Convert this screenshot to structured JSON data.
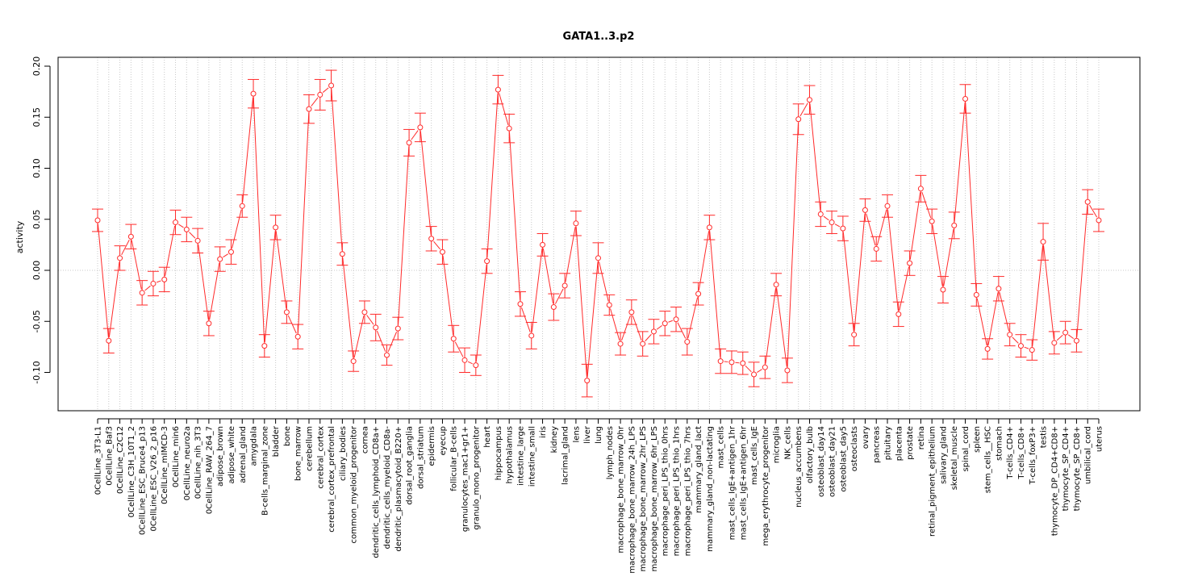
{
  "chart_data": {
    "type": "line",
    "title": "GATA1..3.p2",
    "xlabel": "",
    "ylabel": "activity",
    "ylim": [
      -0.135,
      0.21
    ],
    "yticks": [
      -0.1,
      -0.05,
      0.0,
      0.05,
      0.1,
      0.15,
      0.2
    ],
    "ytick_labels": [
      "-0.10",
      "-0.05",
      "0.00",
      "0.05",
      "0.10",
      "0.15",
      "0.20"
    ],
    "grid": "vertical dotted per category, dotted zero line",
    "error_bars": true,
    "series_color": "#ff2a2a",
    "grid_color": "#c8c8c8",
    "categories": [
      "0CellLine_3T3-L1",
      "0CellLine_Baf3",
      "0CellLine_C2C12",
      "0CellLine_C3H_10T1_2",
      "0CellLine_ESC_Bruce4_p13",
      "0CellLine_ESC_V26_2_p16",
      "0CellLine_mIMCD-3",
      "0CellLine_min6",
      "0CellLine_neuro2a",
      "0CellLine_nih_3T3",
      "0CellLine_RAW_264_7",
      "adipose_brown",
      "adipose_white",
      "adrenal_gland",
      "amygdala",
      "B-cells_marginal_zone",
      "bladder",
      "bone",
      "bone_marrow",
      "cerebellum",
      "cerebral_cortex",
      "cerebral_cortex_prefrontal",
      "ciliary_bodies",
      "common_myeloid_progenitor",
      "cornea",
      "dendritic_cells_lymphoid_CD8a+",
      "dendritic_cells_myeloid_CD8a-",
      "dendritic_plasmacytoid_B220+",
      "dorsal_root_ganglia",
      "dorsal_striatum",
      "epidermis",
      "eyecup",
      "follicular_B-cells",
      "granulocytes_mac1+gr1+",
      "granulo_mono_progenitor",
      "heart",
      "hippocampus",
      "hypothalamus",
      "intestine_large",
      "intestine_small",
      "iris",
      "kidney",
      "lacrimal_gland",
      "lens",
      "liver",
      "lung",
      "lymph_nodes",
      "macrophage_bone_marrow_0hr",
      "macrophage_bone_marrow_24h_LPS",
      "macrophage_bone_marrow_2hr_LPS",
      "macrophage_bone_marrow_6hr_LPS",
      "macrophage_peri_LPS_thio_0hrs",
      "macrophage_peri_LPS_thio_1hrs",
      "macrophage_peri_LPS_thio_7hrs",
      "mammary_gland_lact",
      "mammary_gland_non-lactating",
      "mast_cells",
      "mast_cells_IgE+antigen_1hr",
      "mast_cells_IgE+antigen_6hr",
      "mast_cells_IgE",
      "mega_erythrocyte_progenitor",
      "microglia",
      "NK_cells",
      "nucleus_accumbens",
      "olfactory_bulb",
      "osteoblast_day14",
      "osteoblast_day21",
      "osteoblast_day5",
      "osteoclasts",
      "ovary",
      "pancreas",
      "pituitary",
      "placenta",
      "prostate",
      "retina",
      "retinal_pigment_epithelium",
      "salivary_gland",
      "skeletal_muscle",
      "spinal_cord",
      "spleen",
      "stem_cells__HSC",
      "stomach",
      "T-cells_CD4+",
      "T-cells_CD8+",
      "T-cells_foxP3+",
      "testis",
      "thymocyte_DP_CD4+CD8+",
      "thymocyte_SP_CD4+",
      "thymocyte_SP_CD8+",
      "umbilical_cord",
      "uterus"
    ],
    "values": [
      0.049,
      -0.069,
      0.012,
      0.033,
      -0.022,
      -0.013,
      -0.009,
      0.047,
      0.04,
      0.029,
      -0.052,
      0.011,
      0.018,
      0.063,
      0.173,
      -0.074,
      0.042,
      -0.041,
      -0.065,
      0.158,
      0.172,
      0.181,
      0.016,
      -0.089,
      -0.041,
      -0.056,
      -0.083,
      -0.057,
      0.125,
      0.14,
      0.031,
      0.018,
      -0.067,
      -0.088,
      -0.093,
      0.009,
      0.177,
      0.139,
      -0.033,
      -0.064,
      0.025,
      -0.036,
      -0.015,
      0.046,
      -0.108,
      0.012,
      -0.034,
      -0.072,
      -0.041,
      -0.072,
      -0.06,
      -0.052,
      -0.048,
      -0.07,
      -0.023,
      0.042,
      -0.089,
      -0.09,
      -0.091,
      -0.102,
      -0.095,
      -0.014,
      -0.098,
      0.148,
      0.167,
      0.055,
      0.047,
      0.041,
      -0.063,
      0.059,
      0.021,
      0.063,
      -0.043,
      0.007,
      0.08,
      0.048,
      -0.019,
      0.044,
      0.168,
      -0.024,
      -0.077,
      -0.018,
      -0.063,
      -0.074,
      -0.078,
      0.028,
      -0.071,
      -0.061,
      -0.069,
      0.067,
      0.049
    ],
    "errors": [
      0.011,
      0.012,
      0.012,
      0.012,
      0.012,
      0.012,
      0.012,
      0.012,
      0.012,
      0.012,
      0.012,
      0.012,
      0.012,
      0.011,
      0.014,
      0.011,
      0.012,
      0.011,
      0.012,
      0.014,
      0.015,
      0.015,
      0.011,
      0.01,
      0.011,
      0.013,
      0.01,
      0.011,
      0.013,
      0.014,
      0.012,
      0.012,
      0.013,
      0.012,
      0.01,
      0.012,
      0.014,
      0.014,
      0.012,
      0.013,
      0.011,
      0.013,
      0.012,
      0.012,
      0.016,
      0.015,
      0.01,
      0.011,
      0.012,
      0.012,
      0.012,
      0.012,
      0.012,
      0.013,
      0.011,
      0.012,
      0.012,
      0.011,
      0.011,
      0.012,
      0.011,
      0.011,
      0.012,
      0.015,
      0.014,
      0.012,
      0.011,
      0.012,
      0.011,
      0.011,
      0.012,
      0.011,
      0.012,
      0.012,
      0.013,
      0.012,
      0.013,
      0.013,
      0.014,
      0.011,
      0.01,
      0.012,
      0.011,
      0.011,
      0.01,
      0.018,
      0.011,
      0.011,
      0.011,
      0.012,
      0.011
    ]
  }
}
